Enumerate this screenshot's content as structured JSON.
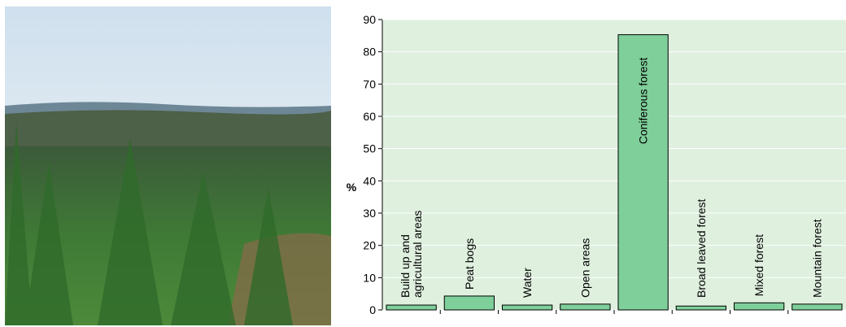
{
  "chart_data": {
    "type": "bar",
    "y_label": "%",
    "categories": [
      "Build up and\nagricultural areas",
      "Peat bogs",
      "Water",
      "Open areas",
      "Coniferous forest",
      "Broad leaved forest",
      "Mixed forest",
      "Mountain forest"
    ],
    "values": [
      1.5,
      4.3,
      1.5,
      1.8,
      85.3,
      1.2,
      2.2,
      1.8
    ],
    "color": "#7fcf9a",
    "ylim": [
      0,
      90
    ],
    "yticks": [
      0,
      10,
      20,
      30,
      40,
      50,
      60,
      70,
      80,
      90
    ],
    "grid": true
  }
}
